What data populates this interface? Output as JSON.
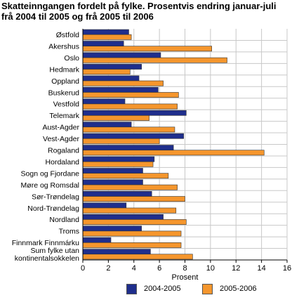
{
  "title_line1": "Skatteinngangen fordelt på fylke. Prosentvis endring januar-juli",
  "title_line2": "frå 2004 til 2005 og frå 2005 til 2006",
  "colors": {
    "series1": "#1f2e8c",
    "series2": "#f5962d",
    "grid": "#c8c8c8"
  },
  "chart_data": {
    "type": "bar",
    "orientation": "horizontal",
    "categories": [
      "Østfold",
      "Akershus",
      "Oslo",
      "Hedmark",
      "Oppland",
      "Buskerud",
      "Vestfold",
      "Telemark",
      "Aust-Agder",
      "Vest-Agder",
      "Rogaland",
      "Hordaland",
      "Sogn og Fjordane",
      "Møre og Romsdal",
      "Sør-Trøndelag",
      "Nord-Trøndelag",
      "Nordland",
      "Troms",
      "Finnmark Finnmárku",
      "Sum fylke utan kontinentalsokkelen"
    ],
    "category_lines": [
      [
        "Østfold"
      ],
      [
        "Akershus"
      ],
      [
        "Oslo"
      ],
      [
        "Hedmark"
      ],
      [
        "Oppland"
      ],
      [
        "Buskerud"
      ],
      [
        "Vestfold"
      ],
      [
        "Telemark"
      ],
      [
        "Aust-Agder"
      ],
      [
        "Vest-Agder"
      ],
      [
        "Rogaland"
      ],
      [
        "Hordaland"
      ],
      [
        "Sogn og Fjordane"
      ],
      [
        "Møre og Romsdal"
      ],
      [
        "Sør-Trøndelag"
      ],
      [
        "Nord-Trøndelag"
      ],
      [
        "Nordland"
      ],
      [
        "Troms"
      ],
      [
        "Finnmark Finnmárku"
      ],
      [
        "Sum fylke utan",
        "kontinentalsokkelen"
      ]
    ],
    "series": [
      {
        "name": "2004-2005",
        "values": [
          3.6,
          3.2,
          6.1,
          4.6,
          4.4,
          5.9,
          3.3,
          8.1,
          3.8,
          7.9,
          7.1,
          5.6,
          4.7,
          4.7,
          5.4,
          3.4,
          6.3,
          4.6,
          2.2,
          5.3
        ]
      },
      {
        "name": "2005-2006",
        "values": [
          3.8,
          10.1,
          11.3,
          3.7,
          6.3,
          7.5,
          7.4,
          5.2,
          7.2,
          6.0,
          14.2,
          5.5,
          6.7,
          7.4,
          8.0,
          7.3,
          8.1,
          7.7,
          7.7,
          8.6
        ]
      }
    ],
    "xlabel": "Prosent",
    "xlim": [
      0,
      16
    ],
    "xticks": [
      0,
      2,
      4,
      6,
      8,
      10,
      12,
      14,
      16
    ],
    "grid": true,
    "legend": "bottom"
  }
}
